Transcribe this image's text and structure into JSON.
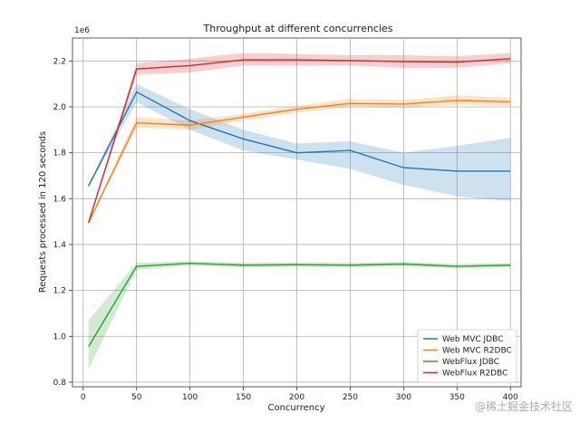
{
  "chart_data": {
    "type": "line",
    "title": "Throughput at different concurrencies",
    "xlabel": "Concurrency",
    "ylabel": "Requests processed in 120 seconds",
    "y_offset_label": "1e6",
    "xlim": [
      -10,
      410
    ],
    "ylim": [
      0.78,
      2.3
    ],
    "x_ticks": [
      0,
      50,
      100,
      150,
      200,
      250,
      300,
      350,
      400
    ],
    "y_ticks": [
      0.8,
      1.0,
      1.2,
      1.4,
      1.6,
      1.8,
      2.0,
      2.2
    ],
    "y_tick_labels": [
      "0.8",
      "1.0",
      "1.2",
      "1.4",
      "1.6",
      "1.8",
      "2.0",
      "2.2"
    ],
    "grid": true,
    "legend_position": "bottom-right",
    "x": [
      5,
      50,
      100,
      150,
      200,
      250,
      300,
      350,
      400
    ],
    "series": [
      {
        "name": "Web MVC JDBC",
        "color": "#1f77b4",
        "values": [
          1.655,
          2.065,
          1.94,
          1.86,
          1.8,
          1.81,
          1.735,
          1.72,
          1.72
        ],
        "band_low": [
          1.65,
          2.02,
          1.9,
          1.81,
          1.77,
          1.73,
          1.66,
          1.61,
          1.59
        ],
        "band_high": [
          1.66,
          2.1,
          1.99,
          1.9,
          1.84,
          1.85,
          1.8,
          1.83,
          1.865
        ]
      },
      {
        "name": "Web MVC R2DBC",
        "color": "#ff7f0e",
        "values": [
          1.495,
          1.93,
          1.92,
          1.955,
          1.99,
          2.015,
          2.012,
          2.028,
          2.022
        ],
        "band_low": [
          1.49,
          1.91,
          1.9,
          1.94,
          1.975,
          2.0,
          1.995,
          2.01,
          2.005
        ],
        "band_high": [
          1.5,
          1.955,
          1.94,
          1.97,
          2.005,
          2.035,
          2.03,
          2.05,
          2.04
        ]
      },
      {
        "name": "WebFlux JDBC",
        "color": "#2ca02c",
        "values": [
          0.955,
          1.305,
          1.318,
          1.31,
          1.312,
          1.31,
          1.315,
          1.305,
          1.31
        ],
        "band_low": [
          0.855,
          1.29,
          1.308,
          1.3,
          1.303,
          1.3,
          1.305,
          1.295,
          1.3
        ],
        "band_high": [
          1.07,
          1.32,
          1.328,
          1.32,
          1.322,
          1.32,
          1.325,
          1.315,
          1.32
        ]
      },
      {
        "name": "WebFlux R2DBC",
        "color": "#d62728",
        "values": [
          1.495,
          2.165,
          2.18,
          2.205,
          2.205,
          2.202,
          2.197,
          2.195,
          2.21
        ],
        "band_low": [
          1.49,
          2.14,
          2.15,
          2.18,
          2.18,
          2.18,
          2.17,
          2.17,
          2.19
        ],
        "band_high": [
          1.5,
          2.19,
          2.21,
          2.235,
          2.23,
          2.225,
          2.225,
          2.22,
          2.235
        ]
      }
    ]
  },
  "watermark": "@稀土掘金技术社区"
}
